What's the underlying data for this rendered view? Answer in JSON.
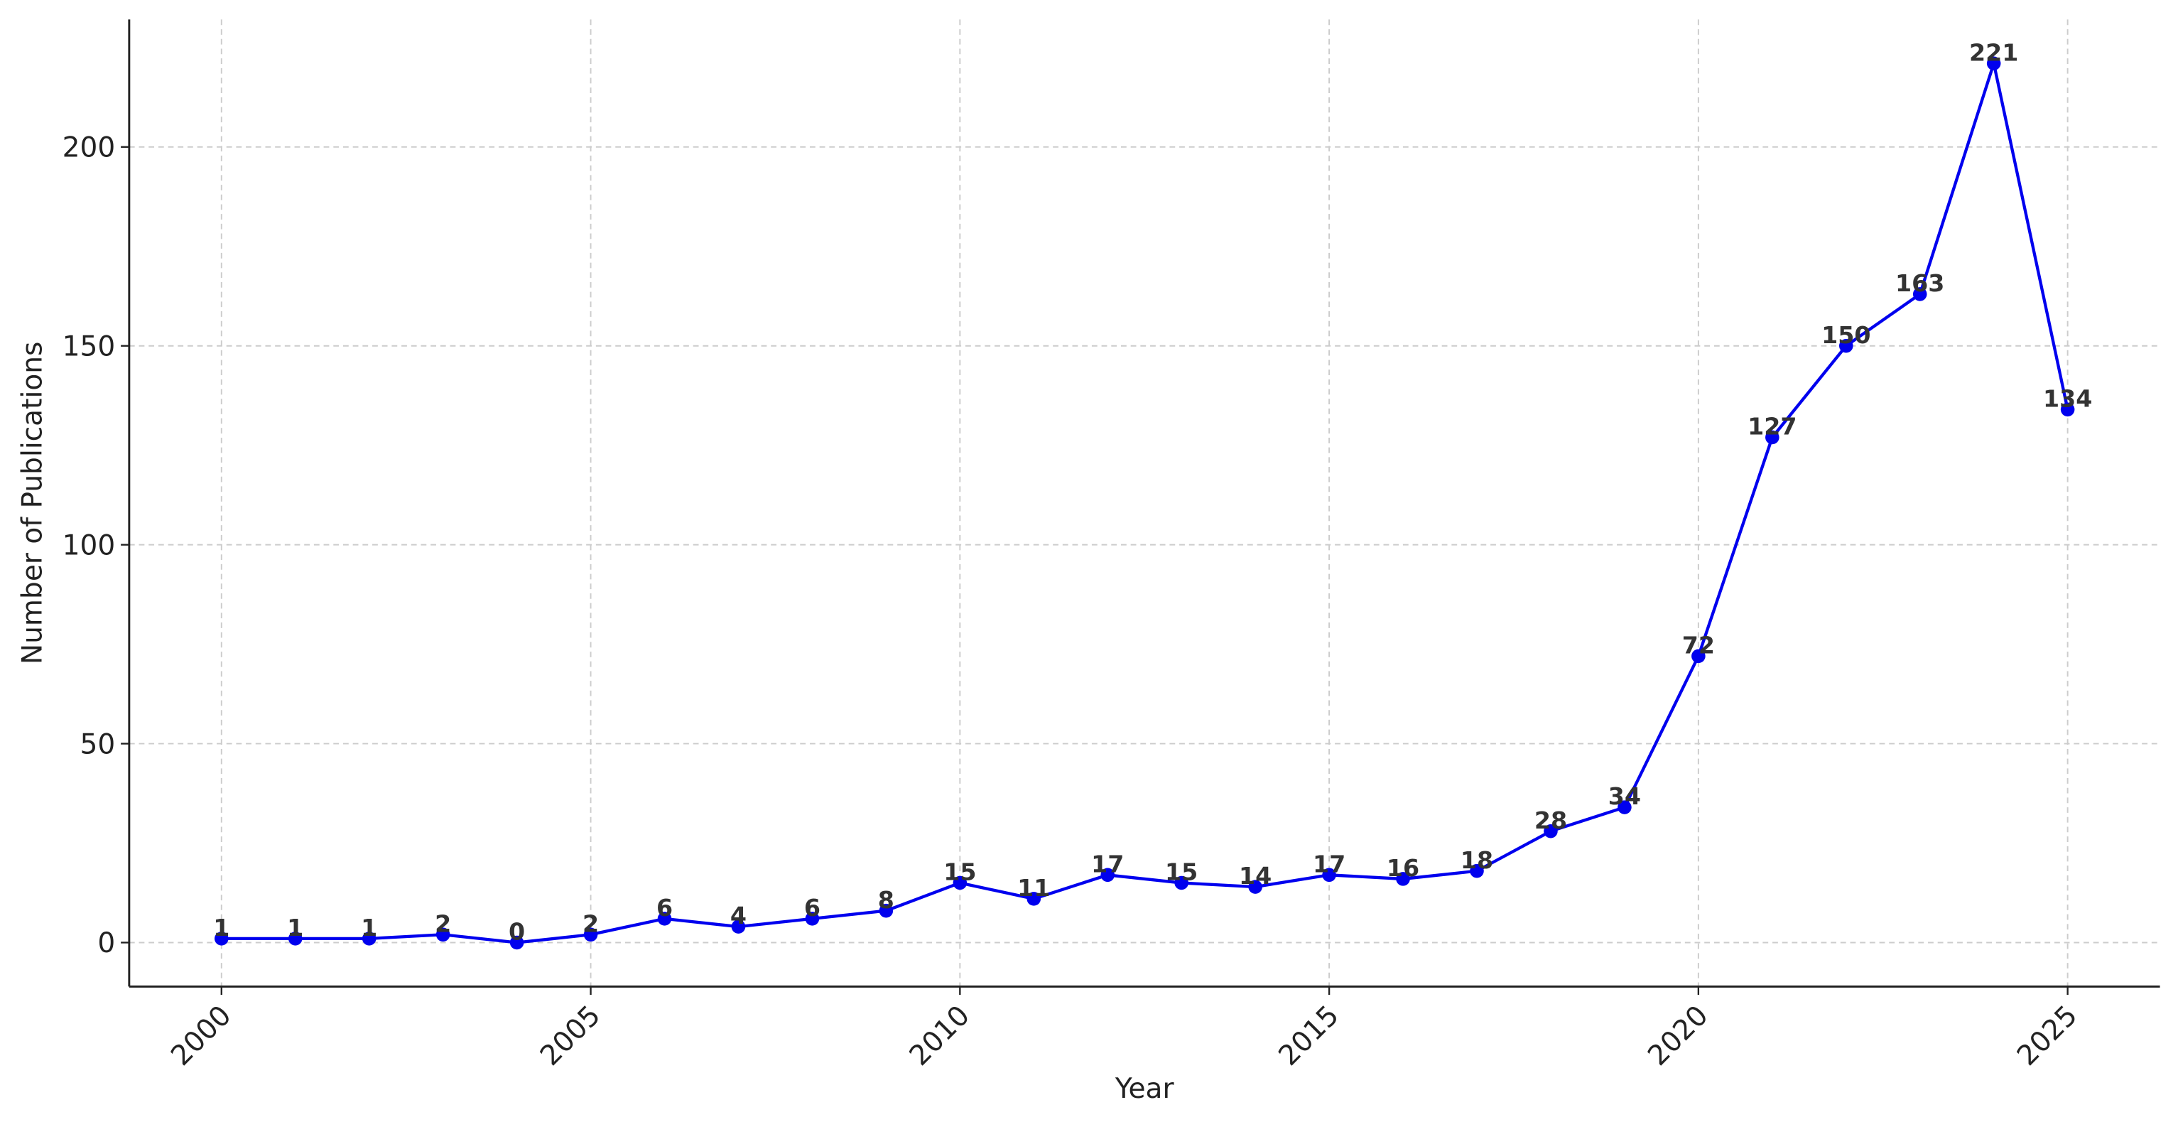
{
  "chart_data": {
    "type": "line",
    "xlabel": "Year",
    "ylabel": "Number of Publications",
    "x": [
      2000,
      2001,
      2002,
      2003,
      2004,
      2005,
      2006,
      2007,
      2008,
      2009,
      2010,
      2011,
      2012,
      2013,
      2014,
      2015,
      2016,
      2017,
      2018,
      2019,
      2020,
      2021,
      2022,
      2023,
      2024,
      2025
    ],
    "values": [
      1,
      1,
      1,
      2,
      0,
      2,
      6,
      4,
      6,
      8,
      15,
      11,
      17,
      15,
      14,
      17,
      16,
      18,
      28,
      34,
      72,
      127,
      150,
      163,
      221,
      134
    ],
    "color": "#0000ee",
    "xlim": [
      1998.75,
      2026.25
    ],
    "ylim": [
      -11.05,
      232.05
    ],
    "xticks": [
      2000,
      2005,
      2010,
      2015,
      2020,
      2025
    ],
    "yticks": [
      0,
      50,
      100,
      150,
      200
    ],
    "grid": true
  }
}
